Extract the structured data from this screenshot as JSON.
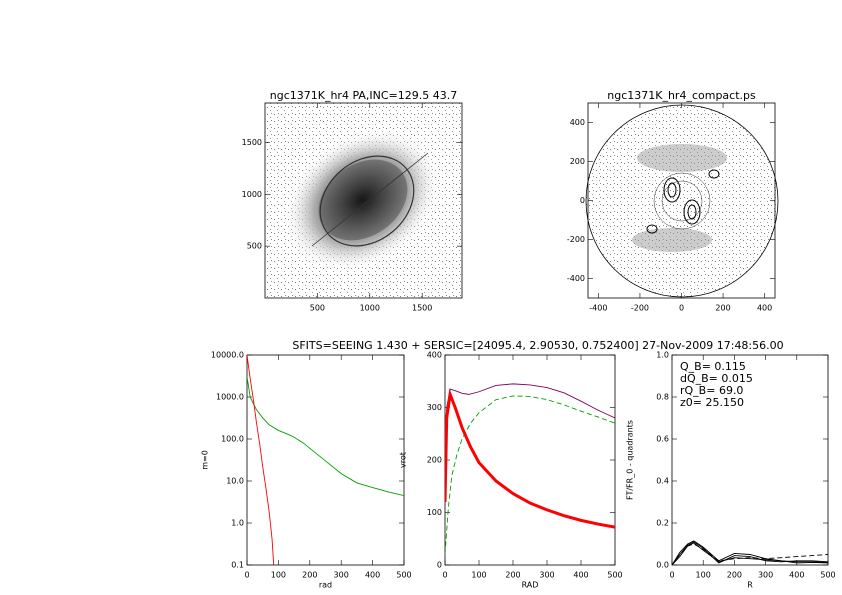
{
  "title": "SFITS=SEEING 1.430 + SERSIC=[24095.4, 2.90530, 0.752400]  27-Nov-2009 17:48:56.00",
  "chart_data": [
    {
      "type": "image",
      "title": "ngc1371K_hr4 PA,INC=129.5 43.7",
      "xlim": [
        0,
        1880
      ],
      "ylim": [
        0,
        1880
      ],
      "xticks": [
        500,
        1000,
        1500
      ],
      "yticks": [
        500,
        1000,
        1500
      ]
    },
    {
      "type": "image",
      "title": "ngc1371K_hr4_compact.ps",
      "xlim": [
        -450,
        450
      ],
      "ylim": [
        -500,
        500
      ],
      "xticks": [
        -400,
        -200,
        0,
        200,
        400
      ],
      "yticks": [
        -400,
        -200,
        0,
        200,
        400
      ]
    },
    {
      "type": "line",
      "xlabel": "rad",
      "ylabel": "m=0",
      "log_y": true,
      "xlim": [
        0,
        500
      ],
      "ylim": [
        0.1,
        10000
      ],
      "xticks": [
        0,
        100,
        200,
        300,
        400,
        500
      ],
      "yticks": [
        0.1,
        {
          "value": 1,
          "label": "1.0"
        },
        {
          "value": 10,
          "label": "10.0"
        },
        {
          "value": 100,
          "label": "100.0"
        },
        {
          "value": 1000,
          "label": "1000.0"
        },
        {
          "value": 10000,
          "label": "10000.0"
        }
      ],
      "series": [
        {
          "color": "#00a000",
          "x": [
            0,
            5,
            10,
            20,
            30,
            50,
            70,
            100,
            130,
            150,
            180,
            200,
            250,
            300,
            350,
            400,
            450,
            500
          ],
          "values": [
            3000,
            1800,
            1000,
            700,
            500,
            320,
            220,
            160,
            130,
            110,
            80,
            60,
            30,
            15,
            9,
            7,
            5.5,
            4.5
          ]
        },
        {
          "color": "#ff0000",
          "x": [
            0,
            10,
            20,
            30,
            40,
            50,
            60,
            70,
            80,
            85
          ],
          "values": [
            10000,
            2800,
            900,
            250,
            80,
            22,
            7,
            2,
            0.4,
            0.1
          ]
        }
      ]
    },
    {
      "type": "line",
      "xlabel": "RAD",
      "ylabel": "vrot",
      "xlim": [
        0,
        500
      ],
      "ylim": [
        0,
        400
      ],
      "xticks": [
        0,
        100,
        200,
        300,
        400,
        500
      ],
      "yticks": [
        0,
        100,
        200,
        300,
        400
      ],
      "series": [
        {
          "color": "#800060",
          "x": [
            0,
            5,
            15,
            30,
            50,
            70,
            100,
            150,
            200,
            250,
            300,
            350,
            400,
            450,
            500
          ],
          "values": [
            150,
            300,
            335,
            332,
            327,
            325,
            330,
            342,
            345,
            343,
            338,
            328,
            312,
            295,
            280
          ]
        },
        {
          "color": "#00a000",
          "dashed": true,
          "x": [
            0,
            10,
            20,
            35,
            50,
            75,
            100,
            150,
            200,
            250,
            300,
            350,
            400,
            450,
            500
          ],
          "values": [
            20,
            110,
            170,
            210,
            240,
            270,
            290,
            315,
            322,
            321,
            315,
            305,
            293,
            282,
            270
          ]
        },
        {
          "color": "#ff0000",
          "thick": true,
          "x": [
            0,
            5,
            15,
            30,
            50,
            75,
            100,
            150,
            200,
            250,
            300,
            350,
            400,
            450,
            500
          ],
          "values": [
            120,
            280,
            325,
            300,
            262,
            225,
            195,
            160,
            136,
            118,
            105,
            94,
            85,
            78,
            72
          ]
        }
      ]
    },
    {
      "type": "line",
      "xlabel": "R",
      "ylabel": "FT/FR_0 - quadrants",
      "xlim": [
        0,
        500
      ],
      "ylim": [
        0,
        1
      ],
      "xticks": [
        0,
        100,
        200,
        300,
        400,
        500
      ],
      "yticks": [
        {
          "value": 0,
          "label": "0.0"
        },
        0.2,
        0.4,
        0.6,
        0.8,
        {
          "value": 1,
          "label": "1.0"
        }
      ],
      "annotations": [
        "Q_B=  0.115",
        "dQ_B=  0.015",
        "rQ_B=   69.0",
        "z0= 25.150"
      ],
      "series": [
        {
          "color": "#000000",
          "x": [
            0,
            25,
            50,
            70,
            100,
            150,
            200,
            250,
            300,
            350,
            400,
            450,
            500
          ],
          "values": [
            0,
            0.05,
            0.095,
            0.11,
            0.08,
            0.01,
            0.045,
            0.04,
            0.02,
            0.015,
            0.02,
            0.02,
            0.015
          ]
        },
        {
          "color": "#000000",
          "x": [
            0,
            25,
            50,
            70,
            100,
            150,
            200,
            250,
            300,
            350,
            400,
            450,
            500
          ],
          "values": [
            0,
            0.04,
            0.09,
            0.105,
            0.07,
            0.015,
            0.035,
            0.03,
            0.025,
            0.02,
            0.01,
            0.012,
            0.01
          ]
        },
        {
          "color": "#000000",
          "x": [
            0,
            25,
            50,
            70,
            100,
            150,
            200,
            250,
            300,
            350,
            400,
            450,
            500
          ],
          "values": [
            0,
            0.06,
            0.1,
            0.115,
            0.085,
            0.02,
            0.055,
            0.05,
            0.03,
            0.02,
            0.015,
            0.015,
            0.012
          ]
        },
        {
          "color": "#000000",
          "dashed": true,
          "x": [
            0,
            25,
            50,
            70,
            100,
            150,
            200,
            250,
            300,
            350,
            400,
            450,
            500
          ],
          "values": [
            0,
            0.05,
            0.09,
            0.1,
            0.075,
            0.02,
            0.03,
            0.035,
            0.03,
            0.035,
            0.04,
            0.045,
            0.05
          ]
        }
      ]
    }
  ]
}
